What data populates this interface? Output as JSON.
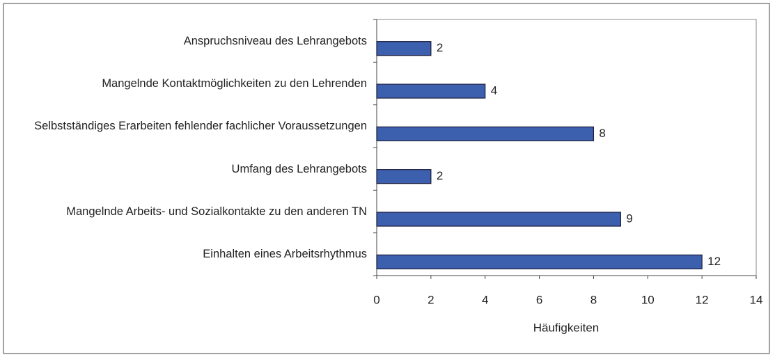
{
  "chart_data": {
    "type": "barh",
    "categories": [
      "Anspruchsniveau des Lehrangebots",
      "Mangelnde Kontaktmöglichkeiten zu den Lehrenden",
      "Selbstständiges Erarbeiten fehlender fachlicher Voraussetzungen",
      "Umfang des Lehrangebots",
      "Mangelnde Arbeits- und Sozialkontakte zu den anderen TN",
      "Einhalten eines Arbeitsrhythmus"
    ],
    "values": [
      2,
      4,
      8,
      2,
      9,
      12
    ],
    "color": "#3c5fae",
    "xlim": [
      0,
      14
    ],
    "xticks": [
      0,
      2,
      4,
      6,
      8,
      10,
      12,
      14
    ],
    "xlabel": "Häufigkeiten"
  }
}
